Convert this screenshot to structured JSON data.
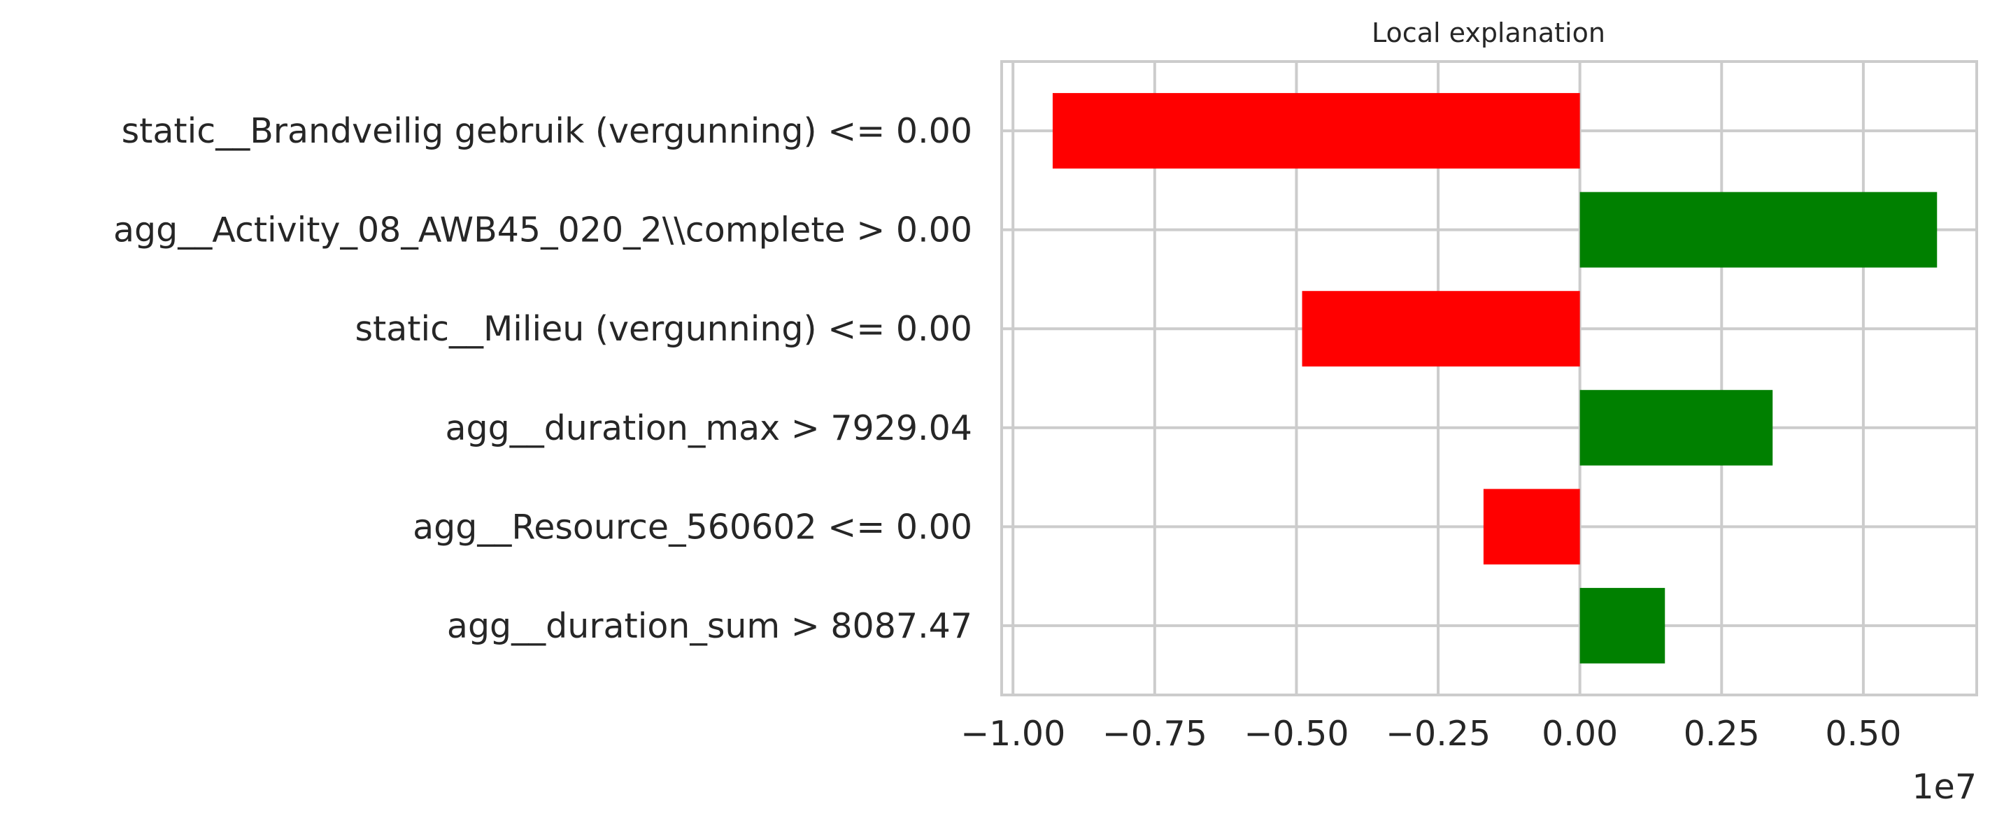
{
  "chart_data": {
    "type": "bar",
    "orientation": "horizontal",
    "title": "Local explanation",
    "xlabel": "",
    "ylabel": "",
    "x_scale_offset": "1e7",
    "xlim": [
      -1.02,
      0.7
    ],
    "grid": true,
    "categories": [
      "static__Brandveilig gebruik (vergunning) <= 0.00",
      "agg__Activity_08_AWB45_020_2\\\\complete > 0.00",
      "static__Milieu (vergunning) <= 0.00",
      "agg__duration_max > 7929.04",
      "agg__Resource_560602 <= 0.00",
      "agg__duration_sum > 8087.47"
    ],
    "values": [
      -0.93,
      0.63,
      -0.49,
      0.34,
      -0.17,
      0.15
    ],
    "x_ticks": [
      -1.0,
      -0.75,
      -0.5,
      -0.25,
      0.0,
      0.25,
      0.5
    ],
    "x_tick_labels": [
      "−1.00",
      "−0.75",
      "−0.50",
      "−0.25",
      "0.00",
      "0.25",
      "0.50"
    ],
    "colors": {
      "positive": "#008000",
      "negative": "#ff0000",
      "grid": "#cccccc",
      "spine": "#cccccc",
      "text": "#262626"
    }
  }
}
